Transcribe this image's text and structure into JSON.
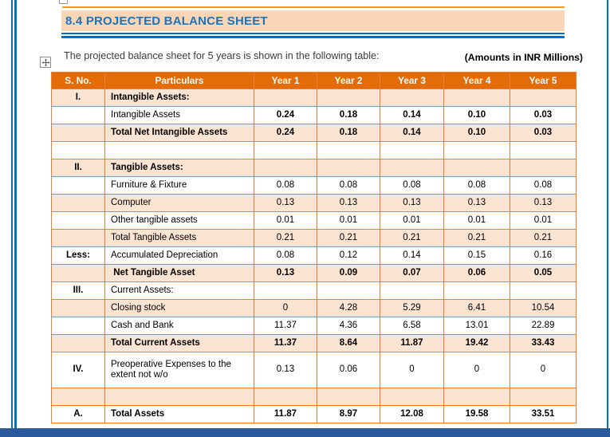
{
  "page": {
    "heading": "8.4 PROJECTED BALANCE SHEET",
    "intro": "The projected balance sheet for 5 years is shown in the following table:",
    "amounts_note": "(Amounts in INR Millions)"
  },
  "colors": {
    "header_orange": "#E36C09",
    "border_orange": "#ED7D31",
    "stripe": "#FCE4D2",
    "band": "#FBD6B6",
    "top_line": "#EE9B2D",
    "blue_line": "#0070C0",
    "title_blue": "#1B74BC",
    "bottom_bar": "#2A5A9E"
  },
  "icons": {
    "move_handle": "table-move-handle-icon"
  },
  "table": {
    "columns": [
      "S. No.",
      "Particulars",
      "Year 1",
      "Year 2",
      "Year 3",
      "Year 4",
      "Year 5"
    ],
    "rows": [
      {
        "sno": "I.",
        "label": "Intangible Assets:",
        "values": [
          "",
          "",
          "",
          "",
          ""
        ],
        "shade": true,
        "bold_label": true,
        "bold_values": false,
        "tall": false
      },
      {
        "sno": "",
        "label": "Intangible Assets",
        "values": [
          "0.24",
          "0.18",
          "0.14",
          "0.10",
          "0.03"
        ],
        "shade": false,
        "bold_label": false,
        "bold_values": true,
        "tall": false
      },
      {
        "sno": "",
        "label": "Total Net Intangible Assets",
        "values": [
          "0.24",
          "0.18",
          "0.14",
          "0.10",
          "0.03"
        ],
        "shade": true,
        "bold_label": true,
        "bold_values": true,
        "tall": false
      },
      {
        "sno": "",
        "label": "",
        "values": [
          "",
          "",
          "",
          "",
          ""
        ],
        "shade": false,
        "bold_label": false,
        "bold_values": false,
        "tall": false
      },
      {
        "sno": "II.",
        "label": "Tangible Assets:",
        "values": [
          "",
          "",
          "",
          "",
          ""
        ],
        "shade": true,
        "bold_label": true,
        "bold_values": false,
        "tall": false
      },
      {
        "sno": "",
        "label": "Furniture & Fixture",
        "values": [
          "0.08",
          "0.08",
          "0.08",
          "0.08",
          "0.08"
        ],
        "shade": false,
        "bold_label": false,
        "bold_values": false,
        "tall": false
      },
      {
        "sno": "",
        "label": "Computer",
        "values": [
          "0.13",
          "0.13",
          "0.13",
          "0.13",
          "0.13"
        ],
        "shade": true,
        "bold_label": false,
        "bold_values": false,
        "tall": false
      },
      {
        "sno": "",
        "label": "Other tangible assets",
        "values": [
          "0.01",
          "0.01",
          "0.01",
          "0.01",
          "0.01"
        ],
        "shade": false,
        "bold_label": false,
        "bold_values": false,
        "tall": false
      },
      {
        "sno": "",
        "label": "Total Tangible Assets",
        "values": [
          "0.21",
          "0.21",
          "0.21",
          "0.21",
          "0.21"
        ],
        "shade": true,
        "bold_label": false,
        "bold_values": false,
        "tall": false
      },
      {
        "sno": "Less:",
        "label": "Accumulated Depreciation",
        "values": [
          "0.08",
          "0.12",
          "0.14",
          "0.15",
          "0.16"
        ],
        "shade": false,
        "bold_label": false,
        "bold_values": false,
        "tall": false
      },
      {
        "sno": "",
        "label": " Net Tangible Asset",
        "values": [
          "0.13",
          "0.09",
          "0.07",
          "0.06",
          "0.05"
        ],
        "shade": true,
        "bold_label": true,
        "bold_values": true,
        "tall": false
      },
      {
        "sno": "III.",
        "label": "Current Assets:",
        "values": [
          "",
          "",
          "",
          "",
          ""
        ],
        "shade": false,
        "bold_label": false,
        "bold_values": false,
        "tall": false
      },
      {
        "sno": "",
        "label": "Closing stock",
        "values": [
          "0",
          "4.28",
          "5.29",
          "6.41",
          "10.54"
        ],
        "shade": true,
        "bold_label": false,
        "bold_values": false,
        "tall": false
      },
      {
        "sno": "",
        "label": "Cash and Bank",
        "values": [
          "11.37",
          "4.36",
          "6.58",
          "13.01",
          "22.89"
        ],
        "shade": false,
        "bold_label": false,
        "bold_values": false,
        "tall": false
      },
      {
        "sno": "",
        "label": "Total Current Assets",
        "values": [
          "11.37",
          "8.64",
          "11.87",
          "19.42",
          "33.43"
        ],
        "shade": true,
        "bold_label": true,
        "bold_values": true,
        "tall": false
      },
      {
        "sno": "IV.",
        "label": "Preoperative Expenses to the extent not w/o",
        "values": [
          "0.13",
          "0.06",
          "0",
          "0",
          "0"
        ],
        "shade": false,
        "bold_label": false,
        "bold_values": false,
        "tall": true
      },
      {
        "sno": "",
        "label": "",
        "values": [
          "",
          "",
          "",
          "",
          ""
        ],
        "shade": true,
        "bold_label": false,
        "bold_values": false,
        "tall": false
      },
      {
        "sno": "A.",
        "label": "Total Assets",
        "values": [
          "11.87",
          "8.97",
          "12.08",
          "19.58",
          "33.51"
        ],
        "shade": false,
        "bold_label": true,
        "bold_values": true,
        "tall": false
      }
    ]
  }
}
